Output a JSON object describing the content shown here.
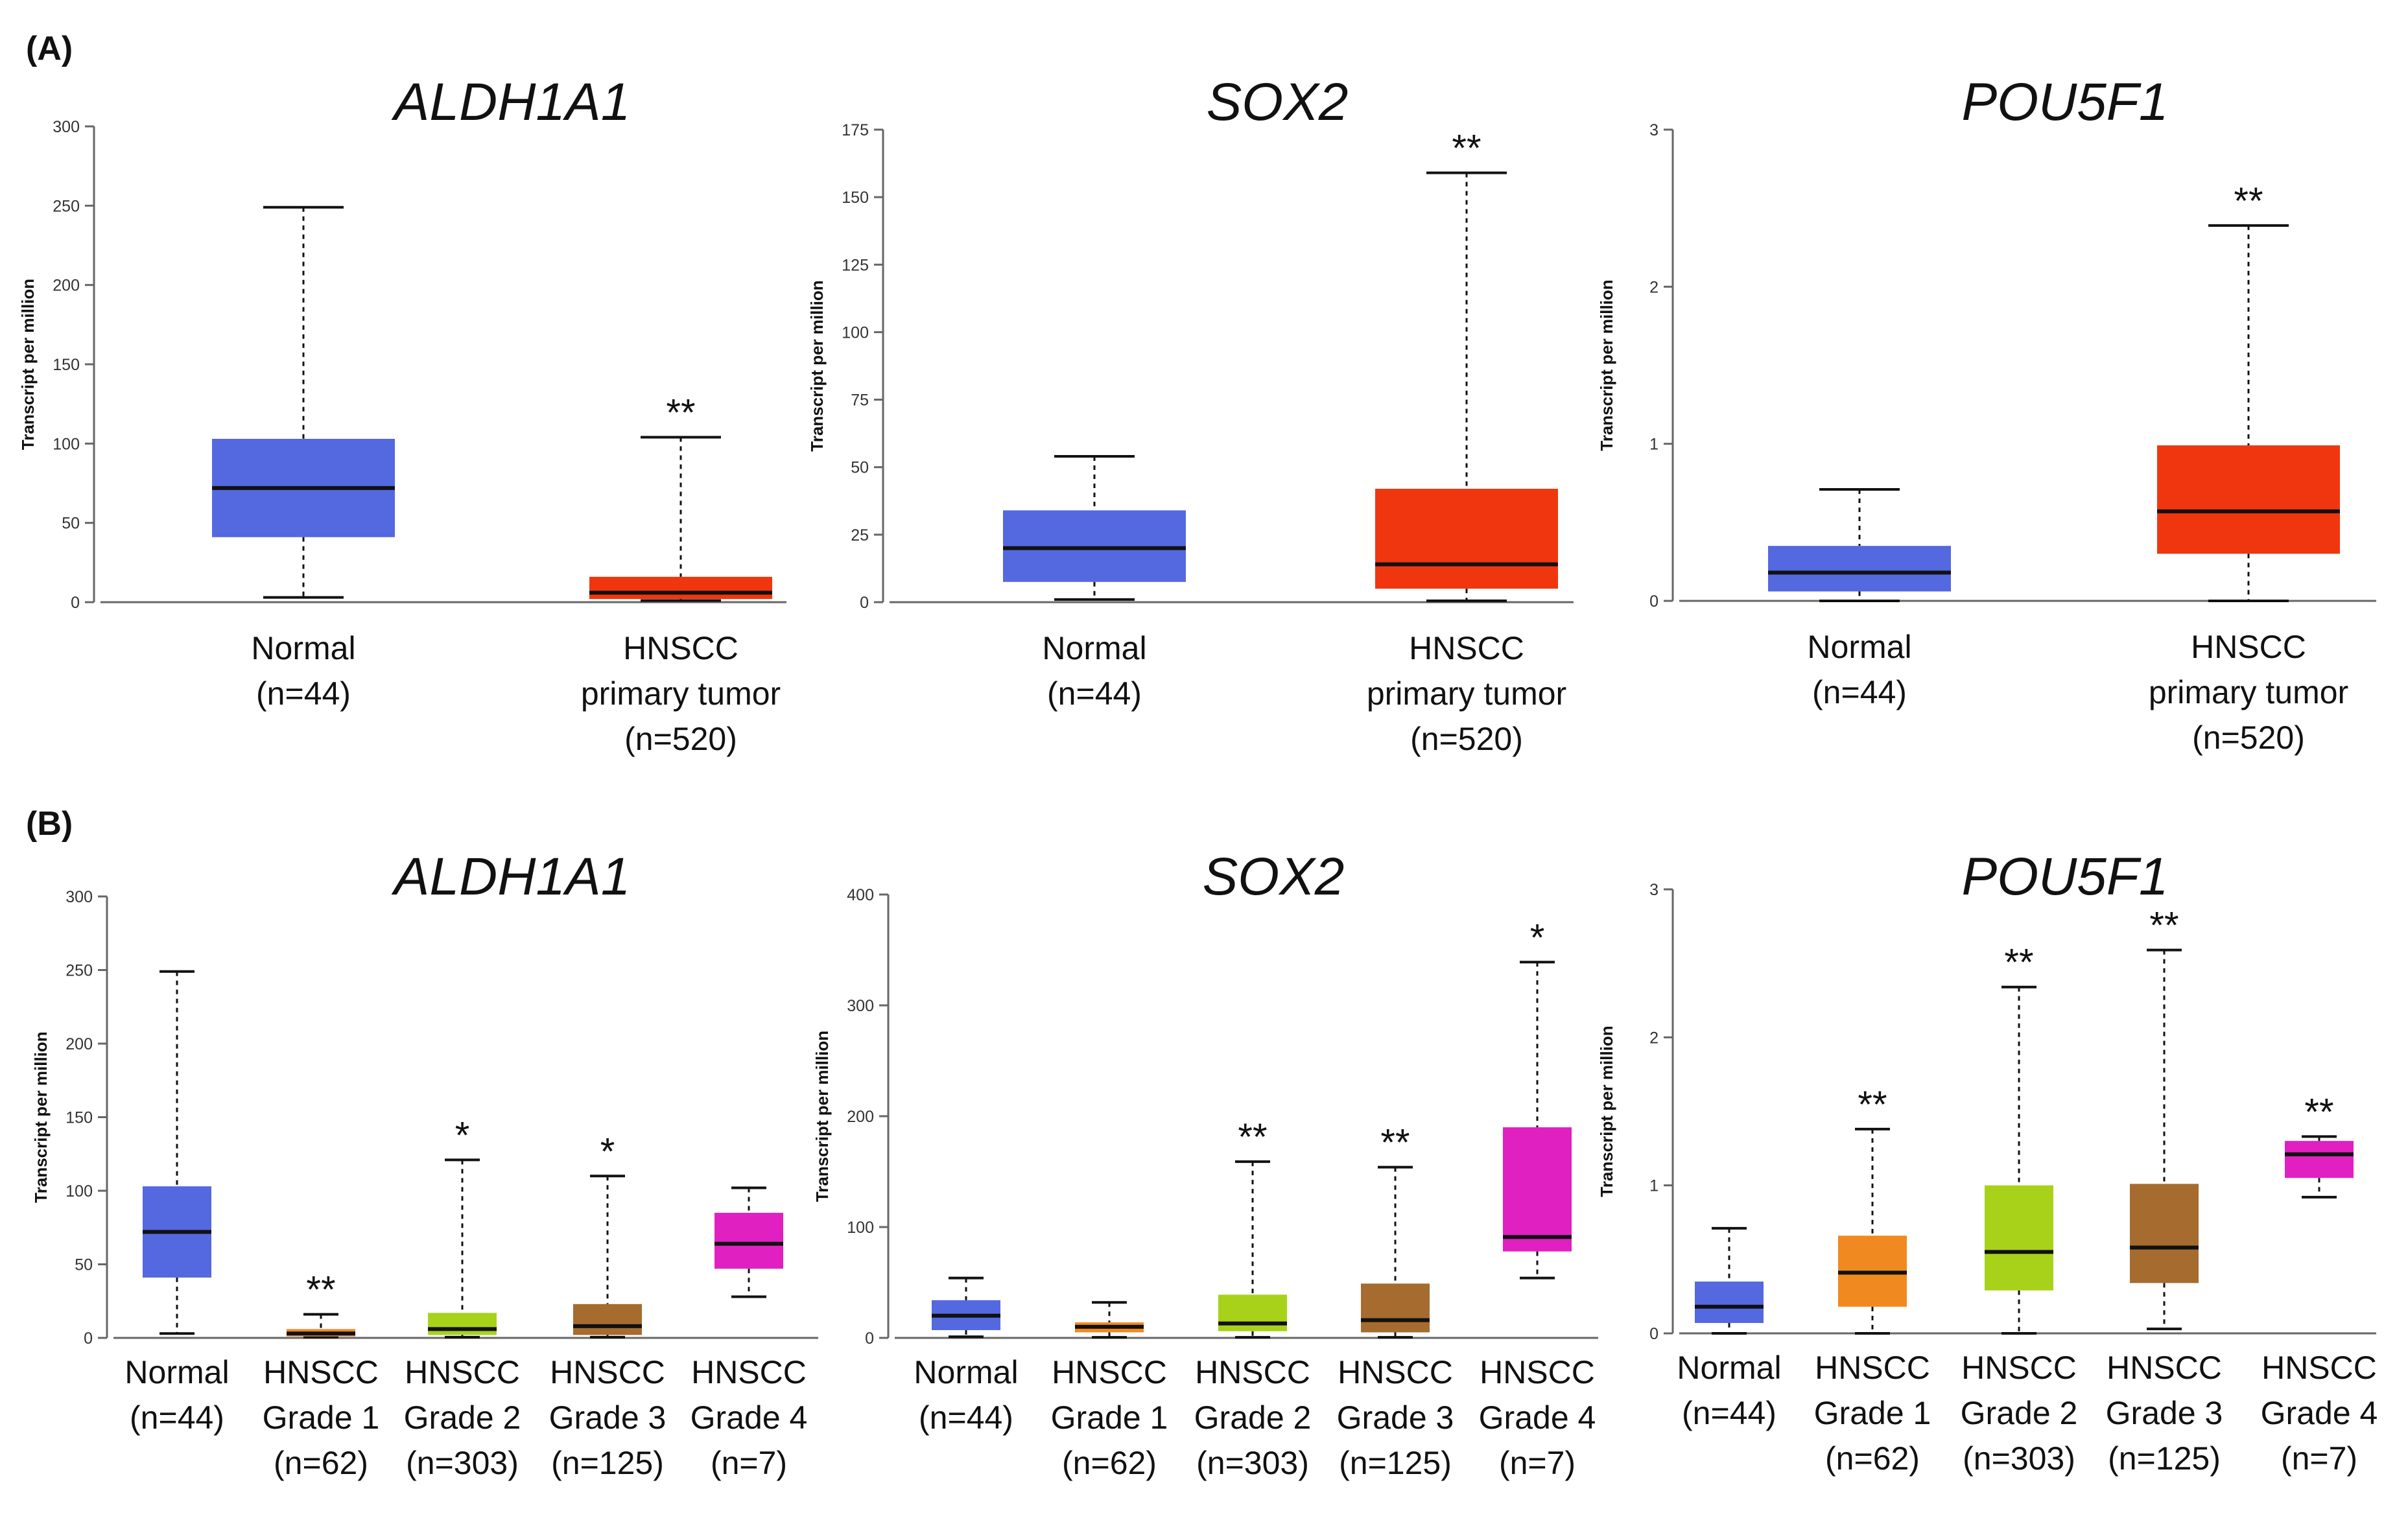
{
  "panel_labels": [
    "(A)",
    "(B)"
  ],
  "chart_data": [
    {
      "type": "box",
      "panel": "A",
      "title": "ALDH1A1",
      "ylabel": "Transcript per million",
      "ylim": [
        0,
        300
      ],
      "yticks": [
        0,
        50,
        100,
        150,
        200,
        250,
        300
      ],
      "categories": [
        {
          "lines": [
            "Normal",
            "(n=44)"
          ],
          "color": "#5468e0",
          "min": 3,
          "q1": 41,
          "median": 72,
          "q3": 103,
          "max": 249,
          "sig": ""
        },
        {
          "lines": [
            "HNSCC",
            "primary tumor",
            "(n=520)"
          ],
          "color": "#f0360f",
          "min": 1,
          "q1": 2,
          "median": 6,
          "q3": 16,
          "max": 104,
          "sig": "**"
        }
      ]
    },
    {
      "type": "box",
      "panel": "A",
      "title": "SOX2",
      "ylabel": "Transcript per million",
      "ylim": [
        0,
        175
      ],
      "yticks": [
        0,
        25,
        50,
        75,
        100,
        125,
        150,
        175
      ],
      "categories": [
        {
          "lines": [
            "Normal",
            "(n=44)"
          ],
          "color": "#5468e0",
          "min": 1,
          "q1": 7.5,
          "median": 20,
          "q3": 34,
          "max": 54,
          "sig": ""
        },
        {
          "lines": [
            "HNSCC",
            "primary tumor",
            "(n=520)"
          ],
          "color": "#f0360f",
          "min": 0.5,
          "q1": 5,
          "median": 14,
          "q3": 42,
          "max": 159,
          "sig": "**"
        }
      ]
    },
    {
      "type": "box",
      "panel": "A",
      "title": "POU5F1",
      "ylabel": "Transcript per million",
      "ylim": [
        0,
        3
      ],
      "yticks": [
        0,
        1,
        2,
        3
      ],
      "categories": [
        {
          "lines": [
            "Normal",
            "(n=44)"
          ],
          "color": "#5468e0",
          "min": 0,
          "q1": 0.06,
          "median": 0.18,
          "q3": 0.35,
          "max": 0.71,
          "sig": ""
        },
        {
          "lines": [
            "HNSCC",
            "primary tumor",
            "(n=520)"
          ],
          "color": "#f0360f",
          "min": 0,
          "q1": 0.3,
          "median": 0.57,
          "q3": 0.99,
          "max": 2.39,
          "sig": "**"
        }
      ]
    },
    {
      "type": "box",
      "panel": "B",
      "title": "ALDH1A1",
      "ylabel": "Transcript per million",
      "ylim": [
        0,
        300
      ],
      "yticks": [
        0,
        50,
        100,
        150,
        200,
        250,
        300
      ],
      "categories": [
        {
          "lines": [
            "Normal",
            "(n=44)"
          ],
          "color": "#5468e0",
          "min": 3,
          "q1": 41,
          "median": 72,
          "q3": 103,
          "max": 249,
          "sig": ""
        },
        {
          "lines": [
            "HNSCC",
            "Grade 1",
            "(n=62)"
          ],
          "color": "#f08a20",
          "min": 0.5,
          "q1": 1,
          "median": 3,
          "q3": 6,
          "max": 16,
          "sig": "**"
        },
        {
          "lines": [
            "HNSCC",
            "Grade 2",
            "(n=303)"
          ],
          "color": "#a8d21a",
          "min": 0.5,
          "q1": 2,
          "median": 6,
          "q3": 17,
          "max": 121,
          "sig": "*"
        },
        {
          "lines": [
            "HNSCC",
            "Grade 3",
            "(n=125)"
          ],
          "color": "#a56b2f",
          "min": 0.5,
          "q1": 2,
          "median": 8,
          "q3": 23,
          "max": 110,
          "sig": "*"
        },
        {
          "lines": [
            "HNSCC",
            "Grade 4",
            "(n=7)"
          ],
          "color": "#e020c0",
          "min": 28,
          "q1": 47,
          "median": 64,
          "q3": 85,
          "max": 102,
          "sig": ""
        }
      ]
    },
    {
      "type": "box",
      "panel": "B",
      "title": "SOX2",
      "ylabel": "Transcript per million",
      "ylim": [
        0,
        400
      ],
      "yticks": [
        0,
        100,
        200,
        300,
        400
      ],
      "categories": [
        {
          "lines": [
            "Normal",
            "(n=44)"
          ],
          "color": "#5468e0",
          "min": 1,
          "q1": 7,
          "median": 20,
          "q3": 34,
          "max": 54,
          "sig": ""
        },
        {
          "lines": [
            "HNSCC",
            "Grade 1",
            "(n=62)"
          ],
          "color": "#f08a20",
          "min": 0.5,
          "q1": 5,
          "median": 10,
          "q3": 14,
          "max": 32,
          "sig": ""
        },
        {
          "lines": [
            "HNSCC",
            "Grade 2",
            "(n=303)"
          ],
          "color": "#a8d21a",
          "min": 0.5,
          "q1": 6,
          "median": 13,
          "q3": 39,
          "max": 159,
          "sig": "**"
        },
        {
          "lines": [
            "HNSCC",
            "Grade 3",
            "(n=125)"
          ],
          "color": "#a56b2f",
          "min": 0.5,
          "q1": 5,
          "median": 16,
          "q3": 49,
          "max": 154,
          "sig": "**"
        },
        {
          "lines": [
            "HNSCC",
            "Grade 4",
            "(n=7)"
          ],
          "color": "#e020c0",
          "min": 54,
          "q1": 78,
          "median": 91,
          "q3": 190,
          "max": 339,
          "sig": "*"
        }
      ]
    },
    {
      "type": "box",
      "panel": "B",
      "title": "POU5F1",
      "ylabel": "Transcript per million",
      "ylim": [
        0,
        3
      ],
      "yticks": [
        0,
        1,
        2,
        3
      ],
      "categories": [
        {
          "lines": [
            "Normal",
            "(n=44)"
          ],
          "color": "#5468e0",
          "min": 0,
          "q1": 0.07,
          "median": 0.18,
          "q3": 0.35,
          "max": 0.71,
          "sig": ""
        },
        {
          "lines": [
            "HNSCC",
            "Grade 1",
            "(n=62)"
          ],
          "color": "#f08a20",
          "min": 0,
          "q1": 0.18,
          "median": 0.41,
          "q3": 0.66,
          "max": 1.38,
          "sig": "**"
        },
        {
          "lines": [
            "HNSCC",
            "Grade 2",
            "(n=303)"
          ],
          "color": "#a8d21a",
          "min": 0,
          "q1": 0.29,
          "median": 0.55,
          "q3": 1.0,
          "max": 2.34,
          "sig": "**"
        },
        {
          "lines": [
            "HNSCC",
            "Grade 3",
            "(n=125)"
          ],
          "color": "#a56b2f",
          "min": 0.03,
          "q1": 0.34,
          "median": 0.58,
          "q3": 1.01,
          "max": 2.59,
          "sig": "**"
        },
        {
          "lines": [
            "HNSCC",
            "Grade 4",
            "(n=7)"
          ],
          "color": "#e020c0",
          "min": 0.92,
          "q1": 1.05,
          "median": 1.21,
          "q3": 1.3,
          "max": 1.33,
          "sig": "**"
        }
      ]
    }
  ]
}
